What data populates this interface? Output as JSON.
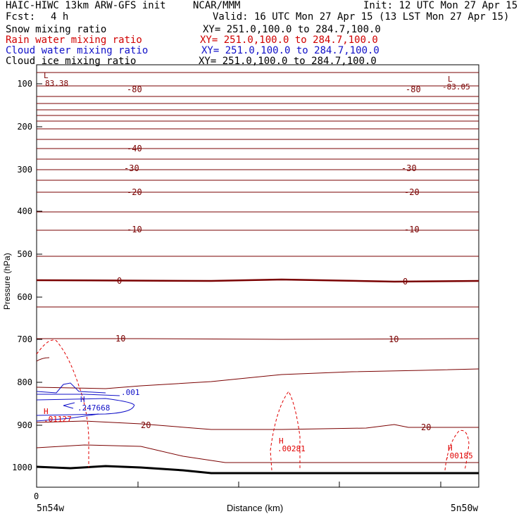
{
  "header": {
    "model": "HAIC-HIWC 13km ARW-GFS init",
    "org": "NCAR/MMM",
    "init": "Init: 12 UTC Mon 27 Apr 15",
    "fcst_label": "Fcst:",
    "fcst_value": "4 h",
    "valid": "Valid: 16 UTC Mon 27 Apr 15 (13 LST Mon 27 Apr 15)"
  },
  "legend": [
    {
      "label": "Snow mixing ratio",
      "xy": "XY= 251.0,100.0 to 284.7,100.0",
      "color": "#000000"
    },
    {
      "label": "Rain water mixing ratio",
      "xy": "XY= 251.0,100.0 to 284.7,100.0",
      "color": "#d00000"
    },
    {
      "label": "Cloud water mixing ratio",
      "xy": "XY= 251.0,100.0 to 284.7,100.0",
      "color": "#1010c8"
    },
    {
      "label": "Cloud ice mixing ratio",
      "xy": "XY= 251.0,100.0 to 284.7,100.0",
      "color": "#000000"
    }
  ],
  "chart_data": {
    "type": "contour-cross-section",
    "xlabel": "Distance (km)",
    "ylabel": "Pressure (hPa)",
    "y_ticks": [
      100,
      200,
      300,
      400,
      500,
      600,
      700,
      800,
      900,
      1000
    ],
    "x_tick_label": "0",
    "x_left_label": "5n54w",
    "x_right_label": "5n50w",
    "temperature_labels": [
      "-80",
      "-40",
      "-30",
      "-20",
      "-10",
      "0",
      "10",
      "20"
    ],
    "extrema": [
      {
        "type": "L",
        "value": "83.38"
      },
      {
        "type": "L",
        "value": "-83.05"
      },
      {
        "type": "H",
        "value": ".247668"
      },
      {
        "type": "H",
        "value": ".01127"
      },
      {
        "type": "H",
        "value": ".00281"
      },
      {
        "type": "H",
        "value": ".00185"
      }
    ],
    "cloud_water_label": ".001",
    "colors": {
      "temperature": "#7a0000",
      "rain": "#e00000",
      "cloud": "#1010c8",
      "ground": "#000000"
    }
  }
}
